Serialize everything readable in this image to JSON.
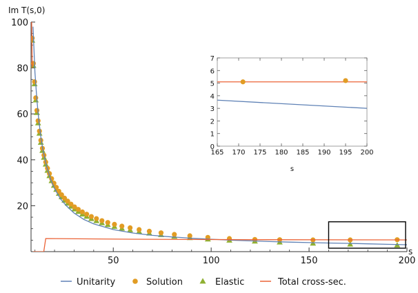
{
  "colors": {
    "unitarity": "#5E81B5",
    "solution": "#E19C24",
    "elastic": "#8FB032",
    "total": "#EB6235"
  },
  "chart_data": [
    {
      "type": "scatter",
      "ylabel": "Im T(s,0)",
      "xlabel": "s",
      "xlim": [
        8,
        200
      ],
      "ylim": [
        0,
        100
      ],
      "xticks": [
        "50",
        "100",
        "150",
        "200"
      ],
      "yticks": [
        "20",
        "40",
        "60",
        "80",
        "100"
      ],
      "grid": false,
      "legend_position": "bottom",
      "legend": [
        "Unitarity",
        "Solution",
        "Elastic",
        "Total cross-sec."
      ],
      "series": [
        {
          "name": "Unitarity",
          "kind": "line",
          "x": [
            9,
            10,
            11,
            12,
            13,
            14,
            16,
            18,
            20,
            23,
            26,
            30,
            35,
            40,
            50,
            60,
            70,
            80,
            90,
            100,
            110,
            120,
            130,
            140,
            150,
            160,
            170,
            180,
            190,
            200
          ],
          "y": [
            98,
            78,
            66,
            57,
            50,
            44.5,
            37,
            31.5,
            27.5,
            23,
            20,
            16.8,
            14,
            12.1,
            9.6,
            8.1,
            7.1,
            6.4,
            5.85,
            5.4,
            5.0,
            4.7,
            4.4,
            4.15,
            3.95,
            3.75,
            3.6,
            3.4,
            3.2,
            3.0
          ]
        },
        {
          "name": "Solution",
          "kind": "points",
          "x": [
            8.6,
            9.2,
            9.8,
            10.4,
            11.0,
            11.6,
            12.3,
            13.0,
            13.8,
            14.6,
            15.5,
            16.4,
            17.4,
            18.5,
            19.7,
            20.9,
            22.2,
            23.6,
            25.1,
            26.7,
            28.4,
            30.2,
            32.1,
            34.2,
            36.4,
            38.8,
            41.4,
            44.2,
            47.2,
            50.6,
            54.4,
            58.6,
            63.2,
            68.4,
            74.4,
            81.2,
            89.1,
            98.3,
            109.3,
            122.3,
            135.0,
            152.0,
            171.0,
            195.0
          ],
          "y": [
            93,
            82,
            74,
            67,
            61.5,
            57,
            52.5,
            48.5,
            45,
            42,
            39,
            36.3,
            34,
            31.8,
            29.8,
            28,
            26.3,
            24.8,
            23.3,
            22,
            20.7,
            19.5,
            18.4,
            17.3,
            16.3,
            15.3,
            14.4,
            13.5,
            12.7,
            11.9,
            11.1,
            10.4,
            9.6,
            8.9,
            8.2,
            7.5,
            6.9,
            6.2,
            5.7,
            5.3,
            5.2,
            5.1,
            5.1,
            5.2
          ]
        },
        {
          "name": "Elastic",
          "kind": "points",
          "x": [
            8.6,
            9.2,
            9.8,
            10.4,
            11.0,
            11.6,
            12.3,
            13.0,
            13.8,
            14.6,
            15.5,
            16.4,
            17.4,
            18.5,
            19.7,
            20.9,
            22.2,
            23.6,
            25.1,
            26.7,
            28.4,
            30.2,
            32.1,
            34.2,
            36.4,
            38.8,
            41.4,
            44.2,
            47.2,
            50.6,
            54.4,
            58.6,
            63.2,
            68.4,
            74.4,
            81.2,
            89.1,
            98.3,
            109.3,
            122.3,
            135.0,
            152.0,
            171.0,
            195.0
          ],
          "y": [
            92,
            81,
            73,
            66,
            60.5,
            56,
            51.5,
            47.5,
            44,
            41,
            38,
            35.3,
            33,
            30.8,
            28.8,
            27,
            25.3,
            23.8,
            22.3,
            21,
            19.7,
            18.5,
            17.4,
            16.3,
            15.3,
            14.3,
            13.4,
            12.5,
            11.7,
            10.9,
            10.1,
            9.4,
            8.7,
            8.0,
            7.3,
            6.6,
            6.0,
            5.4,
            4.9,
            4.5,
            4.1,
            3.6,
            3.2,
            2.8
          ]
        },
        {
          "name": "Total cross-sec.",
          "kind": "line",
          "x": [
            9,
            14.5,
            15.5,
            60,
            120,
            200
          ],
          "y": [
            0,
            0,
            5.7,
            5.4,
            5.2,
            5.1
          ]
        }
      ],
      "zoom_box": {
        "x": [
          160,
          200
        ],
        "y": [
          0,
          13
        ]
      }
    },
    {
      "type": "scatter",
      "xlabel": "s",
      "xlim": [
        165,
        200
      ],
      "ylim": [
        0,
        7
      ],
      "xticks": [
        "165",
        "170",
        "175",
        "180",
        "185",
        "190",
        "195",
        "200"
      ],
      "yticks": [
        "0",
        "1",
        "2",
        "3",
        "4",
        "5",
        "6",
        "7"
      ],
      "grid": false,
      "series": [
        {
          "name": "Unitarity",
          "kind": "line",
          "x": [
            165,
            200
          ],
          "y": [
            3.65,
            3.0
          ]
        },
        {
          "name": "Total cross-sec.",
          "kind": "line",
          "x": [
            165,
            200
          ],
          "y": [
            5.1,
            5.1
          ]
        },
        {
          "name": "Solution",
          "kind": "points",
          "x": [
            171,
            195
          ],
          "y": [
            5.1,
            5.2
          ]
        }
      ]
    }
  ]
}
